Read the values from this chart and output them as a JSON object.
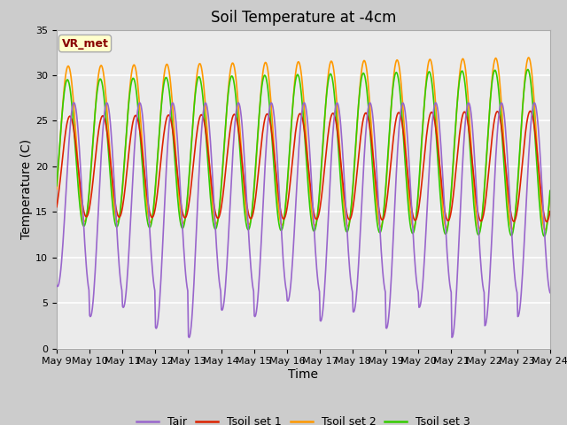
{
  "title": "Soil Temperature at -4cm",
  "xlabel": "Time",
  "ylabel": "Temperature (C)",
  "ylim": [
    0,
    35
  ],
  "xtick_labels": [
    "May 9",
    "May 10",
    "May 11",
    "May 12",
    "May 13",
    "May 14",
    "May 15",
    "May 16",
    "May 17",
    "May 18",
    "May 19",
    "May 20",
    "May 21",
    "May 22",
    "May 23",
    "May 24"
  ],
  "annotation_text": "VR_met",
  "annotation_bg": "#ffffcc",
  "annotation_border": "#aaaaaa",
  "annotation_fg": "#880000",
  "colors": {
    "Tair": "#9966cc",
    "Tsoil1": "#dd2200",
    "Tsoil2": "#ff9900",
    "Tsoil3": "#33cc00"
  },
  "fig_bg": "#cccccc",
  "plot_bg": "#ebebeb",
  "grid_color": "#ffffff",
  "title_fontsize": 12,
  "axis_fontsize": 10,
  "tick_fontsize": 8,
  "legend_fontsize": 9
}
